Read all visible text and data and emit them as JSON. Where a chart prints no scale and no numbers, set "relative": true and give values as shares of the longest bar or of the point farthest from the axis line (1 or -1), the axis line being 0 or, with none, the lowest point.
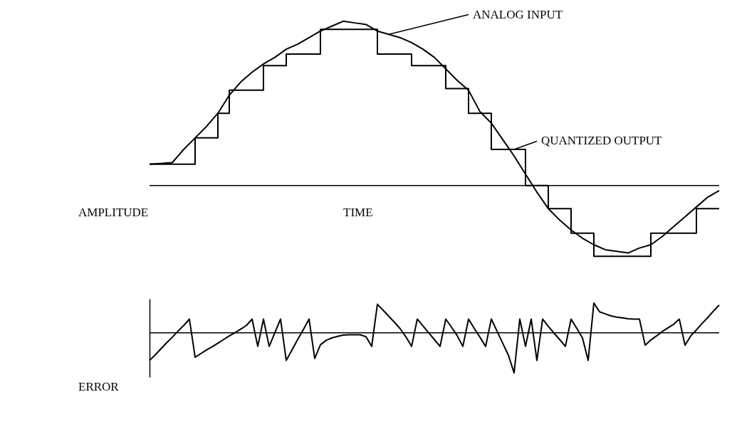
{
  "chart_data": [
    {
      "type": "line",
      "relative": true,
      "xlabel": "TIME",
      "ylabel": "AMPLITUDE",
      "tick_labels": false,
      "grid": false,
      "marker": "none",
      "categories": [
        null,
        null,
        null,
        null,
        null,
        null,
        null,
        null,
        null,
        null,
        null,
        null,
        null,
        null,
        null,
        null,
        null,
        null,
        null,
        null,
        null,
        null,
        null,
        null,
        null,
        null,
        null,
        null,
        null,
        null,
        null,
        null,
        null,
        null,
        null,
        null,
        null,
        null,
        null,
        null,
        null,
        null,
        null,
        null,
        null,
        null,
        null,
        null,
        null,
        null,
        null
      ],
      "series": [
        {
          "name": "ANALOG INPUT",
          "type": "line",
          "color": "#000000",
          "values": [
            0.13,
            0.135,
            0.14,
            0.22,
            0.29,
            0.36,
            0.44,
            0.55,
            0.63,
            0.69,
            0.74,
            0.78,
            0.83,
            0.86,
            0.9,
            0.94,
            0.97,
            1.0,
            0.99,
            0.98,
            0.94,
            0.92,
            0.9,
            0.87,
            0.83,
            0.78,
            0.71,
            0.64,
            0.58,
            0.45,
            0.38,
            0.28,
            0.18,
            0.07,
            -0.04,
            -0.14,
            -0.21,
            -0.27,
            -0.32,
            -0.36,
            -0.39,
            -0.4,
            -0.41,
            -0.38,
            -0.36,
            -0.31,
            -0.25,
            -0.19,
            -0.13,
            -0.07,
            -0.03
          ]
        },
        {
          "name": "QUANTIZED OUTPUT",
          "type": "step",
          "color": "#000000",
          "values": [
            0.13,
            0.13,
            0.13,
            0.13,
            0.29,
            0.29,
            0.44,
            0.58,
            0.58,
            0.58,
            0.73,
            0.73,
            0.8,
            0.8,
            0.8,
            0.95,
            0.95,
            0.95,
            0.95,
            0.95,
            0.8,
            0.8,
            0.8,
            0.73,
            0.73,
            0.73,
            0.59,
            0.59,
            0.44,
            0.44,
            0.22,
            0.22,
            0.22,
            0,
            0,
            -0.14,
            -0.14,
            -0.29,
            -0.29,
            -0.43,
            -0.43,
            -0.43,
            -0.43,
            -0.43,
            -0.29,
            -0.29,
            -0.29,
            -0.29,
            -0.14,
            -0.14,
            -0.14
          ]
        }
      ]
    },
    {
      "type": "line",
      "relative": true,
      "ylabel": "ERROR",
      "tick_labels": false,
      "grid": false,
      "marker": "none",
      "categories": [
        null,
        null,
        null,
        null,
        null,
        null,
        null,
        null,
        null,
        null,
        null,
        null,
        null,
        null,
        null,
        null,
        null,
        null,
        null,
        null,
        null,
        null,
        null,
        null,
        null,
        null,
        null,
        null,
        null,
        null,
        null,
        null,
        null,
        null,
        null,
        null,
        null,
        null,
        null,
        null,
        null,
        null,
        null,
        null,
        null,
        null,
        null,
        null,
        null,
        null,
        null,
        null,
        null,
        null,
        null,
        null,
        null,
        null,
        null,
        null,
        null,
        null,
        null,
        null,
        null,
        null,
        null,
        null,
        null,
        null,
        null,
        null,
        null,
        null,
        null,
        null,
        null,
        null,
        null,
        null,
        null,
        null,
        null,
        null,
        null,
        null,
        null,
        null,
        null,
        null,
        null,
        null,
        null,
        null,
        null,
        null,
        null,
        null,
        null,
        null,
        null
      ],
      "series": [
        {
          "color": "#000000",
          "values": [
            -0.69,
            -0.55,
            -0.4,
            -0.25,
            -0.11,
            0.04,
            0.18,
            0.34,
            -0.61,
            -0.52,
            -0.43,
            -0.35,
            -0.26,
            -0.17,
            -0.08,
            0.0,
            0.09,
            0.18,
            0.34,
            -0.34,
            0.34,
            -0.34,
            0.0,
            0.34,
            -0.69,
            -0.43,
            -0.17,
            0.08,
            0.34,
            -0.64,
            -0.3,
            -0.19,
            -0.13,
            -0.09,
            -0.06,
            -0.05,
            -0.05,
            -0.05,
            -0.1,
            -0.34,
            0.71,
            0.56,
            0.41,
            0.26,
            0.1,
            -0.1,
            -0.34,
            0.34,
            0.17,
            0.0,
            -0.17,
            -0.34,
            0.34,
            0.14,
            -0.07,
            -0.34,
            0.34,
            0.11,
            -0.11,
            -0.34,
            0.34,
            0.04,
            -0.26,
            -0.56,
            -1.0,
            0.34,
            -0.34,
            0.34,
            -0.69,
            0.34,
            0.16,
            -0.01,
            -0.17,
            -0.34,
            0.34,
            0.11,
            -0.13,
            -0.69,
            0.74,
            0.52,
            0.47,
            0.42,
            0.39,
            0.37,
            0.35,
            0.34,
            0.34,
            -0.31,
            -0.18,
            -0.08,
            0.03,
            0.12,
            0.21,
            0.34,
            -0.31,
            -0.08,
            0.07,
            0.23,
            0.38,
            0.54,
            0.69
          ]
        }
      ]
    }
  ]
}
